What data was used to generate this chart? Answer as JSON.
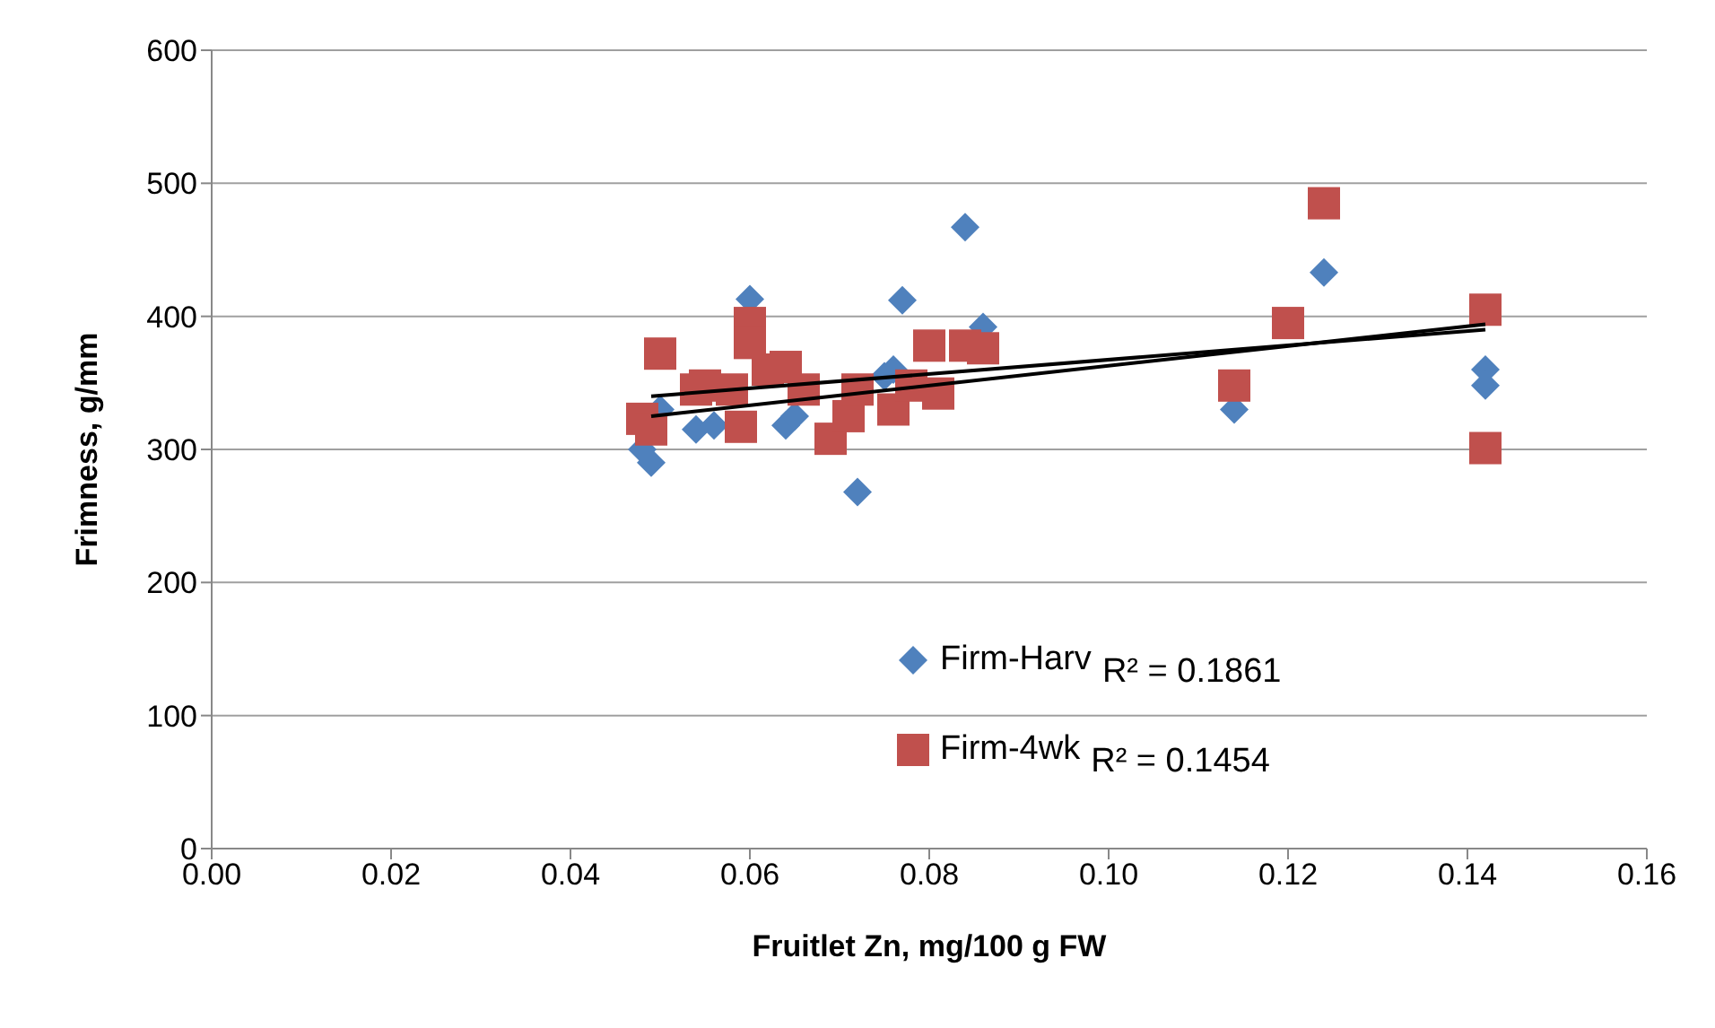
{
  "chart_data": {
    "type": "scatter",
    "xlabel": "Fruitlet Zn, mg/100 g FW",
    "ylabel": "Frimness, g/mm",
    "xlim": [
      0,
      0.16
    ],
    "xticks": [
      {
        "value": 0,
        "label": "0.00"
      },
      {
        "value": 0.02,
        "label": "0.02"
      },
      {
        "value": 0.04,
        "label": "0.04"
      },
      {
        "value": 0.06,
        "label": "0.06"
      },
      {
        "value": 0.08,
        "label": "0.08"
      },
      {
        "value": 0.1,
        "label": "0.10"
      },
      {
        "value": 0.12,
        "label": "0.12"
      },
      {
        "value": 0.14,
        "label": "0.14"
      },
      {
        "value": 0.16,
        "label": "0.16"
      }
    ],
    "ylim": [
      0,
      600
    ],
    "yticks": [
      0,
      100,
      200,
      300,
      400,
      500,
      600
    ],
    "grid": "y",
    "legend": "bottom",
    "annotations": [
      "R² = 0.1861",
      "R² = 0.1454"
    ],
    "series": [
      {
        "name": "Firm-Harv",
        "color": "#4f81bd",
        "marker": "diamond",
        "x": [
          0.048,
          0.049,
          0.05,
          0.054,
          0.056,
          0.06,
          0.064,
          0.065,
          0.072,
          0.075,
          0.076,
          0.077,
          0.084,
          0.086,
          0.114,
          0.124,
          0.142,
          0.142
        ],
        "values": [
          300,
          290,
          330,
          315,
          318,
          413,
          318,
          325,
          268,
          355,
          360,
          412,
          467,
          392,
          330,
          433,
          360,
          348
        ]
      },
      {
        "name": "Firm-4wk",
        "color": "#c0504d",
        "marker": "square",
        "x": [
          0.048,
          0.049,
          0.05,
          0.054,
          0.055,
          0.058,
          0.059,
          0.06,
          0.06,
          0.062,
          0.064,
          0.066,
          0.069,
          0.071,
          0.072,
          0.076,
          0.078,
          0.08,
          0.081,
          0.084,
          0.086,
          0.114,
          0.12,
          0.124,
          0.142,
          0.142
        ],
        "values": [
          323,
          315,
          372,
          345,
          348,
          345,
          317,
          395,
          380,
          360,
          362,
          345,
          308,
          325,
          345,
          330,
          348,
          378,
          342,
          378,
          376,
          348,
          395,
          485,
          405,
          301
        ]
      },
      {
        "type": "line",
        "color": "#000000",
        "marker": "none",
        "x": [
          0.049,
          0.142
        ],
        "values": [
          325,
          394
        ]
      },
      {
        "type": "line",
        "color": "#000000",
        "marker": "none",
        "x": [
          0.049,
          0.142
        ],
        "values": [
          340,
          390
        ]
      }
    ]
  }
}
